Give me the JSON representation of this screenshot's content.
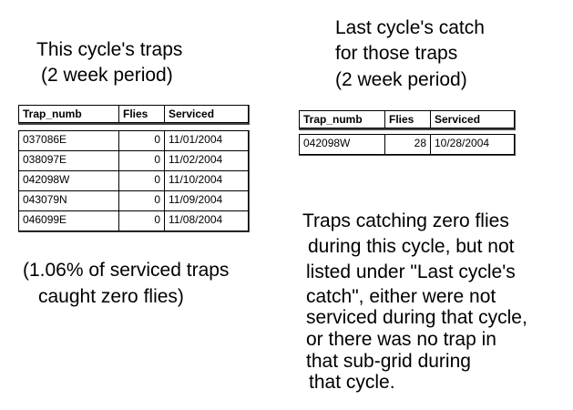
{
  "left_heading": {
    "lines": [
      "This cycle's traps",
      "(2 week period)"
    ]
  },
  "left_table": {
    "columns": [
      "Trap_numb",
      "Flies",
      "Serviced"
    ],
    "rows": [
      [
        "037086E",
        0,
        "11/01/2004"
      ],
      [
        "038097E",
        0,
        "11/02/2004"
      ],
      [
        "042098W",
        0,
        "11/10/2004"
      ],
      [
        "043079N",
        0,
        "11/09/2004"
      ],
      [
        "046099E",
        0,
        "11/08/2004"
      ]
    ]
  },
  "left_note": {
    "lines": [
      "(1.06% of serviced traps",
      "caught zero flies)"
    ]
  },
  "right_heading": {
    "lines": [
      "Last cycle's catch",
      "for those traps",
      "(2 week period)"
    ]
  },
  "right_table": {
    "columns": [
      "Trap_numb",
      "Flies",
      "Serviced"
    ],
    "rows": [
      [
        "042098W",
        28,
        "10/28/2004"
      ]
    ]
  },
  "right_note": {
    "lines": [
      "Traps catching zero flies",
      "during this cycle, but not",
      "listed under \"Last cycle's",
      "catch\", either were not",
      "serviced during that cycle,",
      "or there was no trap in",
      "that sub-grid during",
      "that cycle."
    ]
  }
}
